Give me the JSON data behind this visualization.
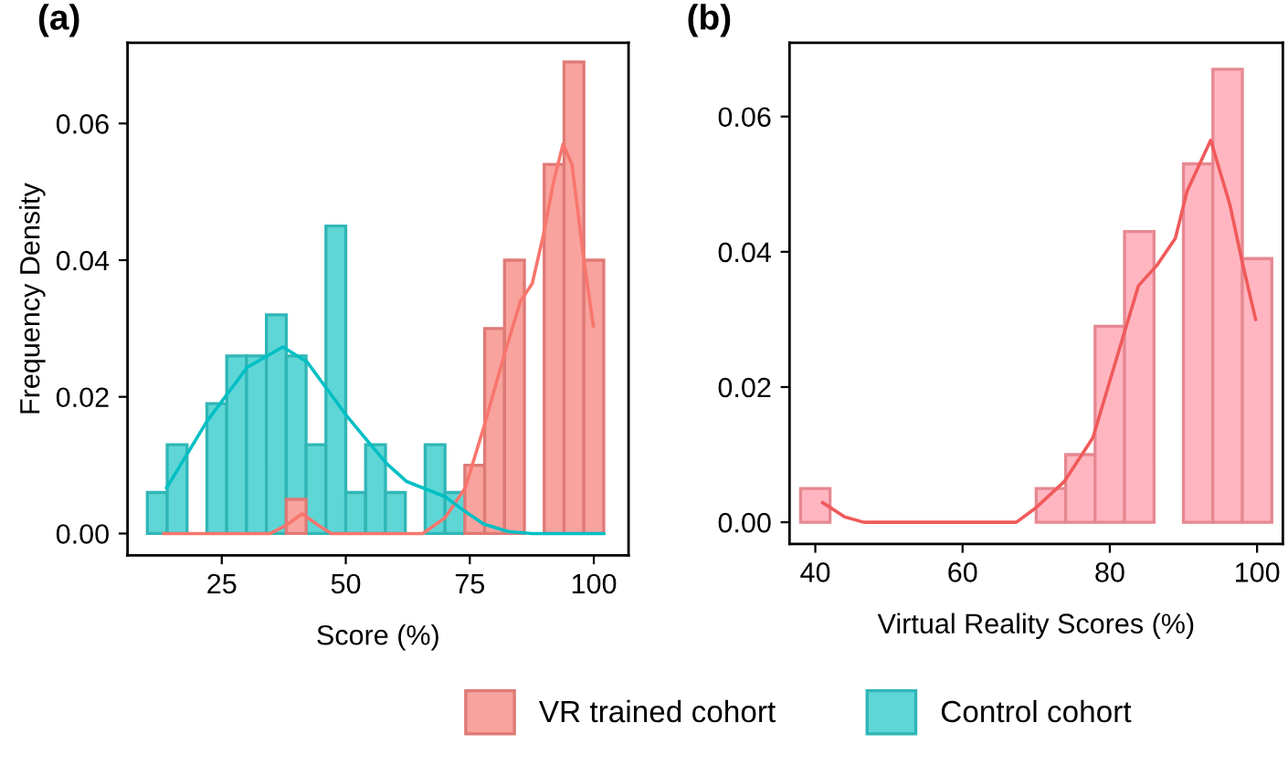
{
  "chart_data": [
    {
      "type": "histogram",
      "title": "(a)",
      "xlabel": "Score (%)",
      "ylabel": "Frequency Density",
      "bins": [
        10,
        14,
        18,
        22,
        26,
        30,
        34,
        38,
        42,
        46,
        50,
        54,
        58,
        62,
        66,
        70,
        74,
        78,
        82,
        86,
        90,
        94,
        98,
        102
      ],
      "series": [
        {
          "name": "VR trained cohort",
          "color": "#f8a39d",
          "values": [
            0,
            0,
            0,
            0,
            0,
            0,
            0,
            0.005,
            0,
            0,
            0,
            0,
            0,
            0,
            0,
            0,
            0.01,
            0.03,
            0.04,
            0,
            0.054,
            0.069,
            0.04
          ]
        },
        {
          "name": "Control cohort",
          "color": "#5fd6d6",
          "values": [
            0.006,
            0.013,
            0,
            0.019,
            0.026,
            0.026,
            0.032,
            0.026,
            0.013,
            0.045,
            0.006,
            0.013,
            0.006,
            0,
            0.013,
            0.006,
            0,
            0,
            0,
            0,
            0,
            0,
            0
          ]
        },
        {
          "type": "line",
          "color": "#00bfc4",
          "x": [
            13.9,
            22,
            30.1,
            37.3,
            42.2,
            50.2,
            54.2,
            58.3,
            62.3,
            70,
            74.1,
            77.8,
            82.7,
            87.6,
            102
          ],
          "values": [
            0.0067,
            0.0164,
            0.0243,
            0.0273,
            0.0251,
            0.0172,
            0.0137,
            0.0102,
            0.0076,
            0.0054,
            0.0032,
            0.0014,
            0.0003,
            0,
            0
          ]
        },
        {
          "type": "line",
          "color": "#f8766d",
          "x": [
            13.3,
            34.8,
            38,
            41.2,
            44.5,
            47.1,
            65.5,
            70,
            74.1,
            77.8,
            81.9,
            85.2,
            87.6,
            89.8,
            91.9,
            93.8,
            95.6,
            98,
            99.9
          ],
          "values": [
            0,
            0,
            0.0012,
            0.0029,
            0.0012,
            0,
            0,
            0.0023,
            0.0067,
            0.0155,
            0.026,
            0.034,
            0.0366,
            0.0436,
            0.0515,
            0.057,
            0.054,
            0.04,
            0.0304
          ]
        }
      ],
      "xlim": [
        6,
        107
      ],
      "ylim": [
        -0.0032,
        0.0718
      ],
      "xticks": [
        25,
        50,
        75,
        100
      ],
      "yticks": [
        {
          "value": 0,
          "label": "0.00"
        },
        {
          "value": 0.02,
          "label": "0.02"
        },
        {
          "value": 0.04,
          "label": "0.04"
        },
        {
          "value": 0.06,
          "label": "0.06"
        }
      ],
      "legend": "bottom"
    },
    {
      "type": "histogram",
      "title": "(b)",
      "xlabel": "Virtual Reality Scores (%)",
      "bins": [
        38,
        42,
        46,
        50,
        54,
        58,
        62,
        66,
        70,
        74,
        78,
        82,
        86,
        90,
        94,
        98,
        102
      ],
      "series": [
        {
          "color": "#ffb6c1",
          "values": [
            0.005,
            0,
            0,
            0,
            0,
            0,
            0,
            0,
            0.005,
            0.01,
            0.029,
            0.043,
            0,
            0.053,
            0.067,
            0.039
          ]
        },
        {
          "type": "line",
          "color": "#f05a5a",
          "x": [
            41,
            44,
            46.6,
            55,
            67.3,
            69.8,
            73.8,
            77.7,
            81.4,
            83.9,
            86.4,
            88.9,
            90.5,
            93.7,
            96.3,
            98,
            99.8
          ],
          "values": [
            0.0029,
            0.0008,
            0,
            0,
            0,
            0.002,
            0.006,
            0.0125,
            0.026,
            0.035,
            0.038,
            0.042,
            0.049,
            0.0565,
            0.047,
            0.0384,
            0.03
          ]
        }
      ],
      "xlim": [
        36.5,
        103.5
      ],
      "ylim": [
        -0.0032,
        0.0709
      ],
      "xticks": [
        40,
        60,
        80,
        100
      ],
      "yticks": [
        {
          "value": 0,
          "label": "0.00"
        },
        {
          "value": 0.02,
          "label": "0.02"
        },
        {
          "value": 0.04,
          "label": "0.04"
        },
        {
          "value": 0.06,
          "label": "0.06"
        }
      ]
    }
  ]
}
